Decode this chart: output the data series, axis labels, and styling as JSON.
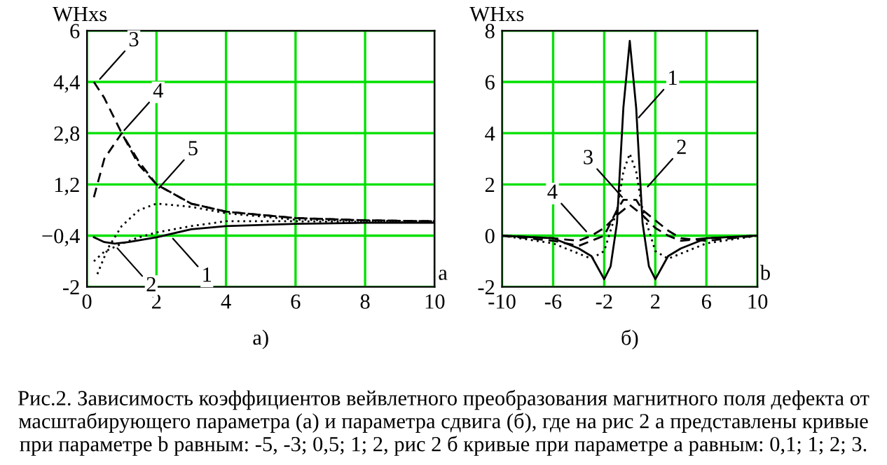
{
  "chart_data": [
    {
      "type": "line",
      "ylabel": "WHxs",
      "xlabel": "a",
      "xlim": [
        0,
        10
      ],
      "ylim": [
        -2,
        6
      ],
      "xticks": [
        0,
        2,
        4,
        6,
        8,
        10
      ],
      "yticks": [
        -2,
        {
          "value": -0.4,
          "label": "−0,4"
        },
        {
          "value": 1.2,
          "label": "1,2"
        },
        {
          "value": 2.8,
          "label": "2,8"
        },
        {
          "value": 4.4,
          "label": "4,4"
        },
        6
      ],
      "grid": true,
      "marker": "none",
      "series": [
        {
          "color": "#000000",
          "line_style": "solid",
          "x": [
            0.2,
            0.5,
            0.8,
            1.2,
            2,
            3,
            4,
            6,
            8,
            10
          ],
          "values": [
            -0.45,
            -0.6,
            -0.65,
            -0.6,
            -0.45,
            -0.2,
            -0.1,
            -0.03,
            0,
            0
          ]
        },
        {
          "color": "#000000",
          "line_style": "dotted",
          "x": [
            0.2,
            0.5,
            1,
            1.5,
            2,
            3,
            4,
            6,
            8,
            10
          ],
          "values": [
            -1.2,
            -0.9,
            -0.65,
            -0.45,
            -0.3,
            -0.1,
            0.05,
            0.05,
            0.03,
            0.02
          ]
        },
        {
          "color": "#000000",
          "line_style": "dashed",
          "x": [
            0.2,
            0.5,
            1,
            1.5,
            2,
            3,
            4,
            6,
            8,
            10
          ],
          "values": [
            4.4,
            3.9,
            2.8,
            1.8,
            1.2,
            0.6,
            0.35,
            0.15,
            0.08,
            0.05
          ]
        },
        {
          "color": "#000000",
          "line_style": "dashed",
          "x": [
            0.2,
            0.5,
            1,
            1.5,
            2,
            2.5,
            3,
            4,
            6,
            8,
            10
          ],
          "values": [
            0.8,
            2.0,
            2.8,
            1.9,
            1.2,
            0.9,
            0.6,
            0.35,
            0.15,
            0.08,
            0.05
          ]
        },
        {
          "color": "#000000",
          "line_style": "dotted",
          "x": [
            0.3,
            0.6,
            1,
            1.5,
            2,
            3,
            4,
            6,
            8,
            10
          ],
          "values": [
            -1.6,
            -0.8,
            -0.1,
            0.4,
            0.6,
            0.5,
            0.3,
            0.1,
            0.06,
            0.05
          ]
        }
      ],
      "annotations": [
        "а)",
        {
          "text": "3",
          "x": 0.3,
          "y": 4.4
        },
        {
          "text": "4",
          "x": 1,
          "y": 2.8
        },
        {
          "text": "5",
          "x": 2,
          "y": 1.0
        },
        {
          "text": "2",
          "x": 0.8,
          "y": -0.7
        },
        {
          "text": "1",
          "x": 2.4,
          "y": -0.4
        }
      ]
    },
    {
      "type": "line",
      "ylabel": "WHxs",
      "xlabel": "b",
      "xlim": [
        -10,
        10
      ],
      "ylim": [
        -2,
        8
      ],
      "xticks": [
        -10,
        -6,
        -2,
        2,
        6,
        10
      ],
      "yticks": [
        -2,
        0,
        2,
        4,
        6,
        8
      ],
      "grid": true,
      "marker": "none",
      "series": [
        {
          "color": "#000000",
          "line_style": "solid",
          "x": [
            -10,
            -6,
            -4,
            -3,
            -2,
            -1.5,
            -1,
            -0.5,
            0,
            0.5,
            1,
            1.5,
            2,
            3,
            4,
            6,
            10
          ],
          "values": [
            0,
            -0.1,
            -0.5,
            -0.8,
            -1.7,
            -1.2,
            0.5,
            5,
            7.6,
            5,
            0.5,
            -1.2,
            -1.7,
            -0.8,
            -0.5,
            -0.1,
            0
          ]
        },
        {
          "color": "#000000",
          "line_style": "dotted",
          "x": [
            -10,
            -6,
            -4,
            -3,
            -2,
            -1,
            -0.5,
            0,
            0.5,
            1,
            2,
            3,
            4,
            6,
            10
          ],
          "values": [
            0,
            -0.3,
            -0.7,
            -0.9,
            -0.6,
            1.0,
            2.5,
            3.2,
            2.5,
            1.0,
            -0.6,
            -0.9,
            -0.7,
            -0.3,
            0
          ]
        },
        {
          "color": "#000000",
          "line_style": "dashed",
          "x": [
            -10,
            -6,
            -4,
            -2,
            -1,
            -0.5,
            0.5,
            1,
            2,
            3,
            4,
            6,
            10
          ],
          "values": [
            0,
            -0.2,
            -0.4,
            0,
            1.0,
            1.4,
            1.4,
            1.0,
            0.6,
            0.2,
            -0.1,
            -0.2,
            0
          ]
        },
        {
          "color": "#000000",
          "line_style": "dashed",
          "x": [
            -10,
            -6,
            -4,
            -3,
            -2,
            -1,
            0,
            1,
            2,
            3,
            4,
            6,
            10
          ],
          "values": [
            0,
            -0.1,
            -0.2,
            0,
            0.3,
            0.8,
            1.2,
            0.8,
            0.3,
            0,
            -0.2,
            -0.1,
            0
          ]
        }
      ],
      "annotations": [
        "б)",
        {
          "text": "1",
          "x": 0.5,
          "y": 4.5
        },
        {
          "text": "2",
          "x": 1.2,
          "y": 1.8
        },
        {
          "text": "3",
          "x": -0.4,
          "y": 1.4
        },
        {
          "text": "4",
          "x": -3.2,
          "y": 0.05
        },
        "Рис.2. Зависимость коэффициентов вейвлетного преобразования магнитного поля дефекта от масштабирующего параметра (а) и параметра сдвига (б), где на рис 2 а представлены кривые при параметре b равным: -5, -3; 0,5; 1; 2, рис 2 б кривые при параметре a равным: 0,1; 1; 2; 3."
      ]
    }
  ]
}
